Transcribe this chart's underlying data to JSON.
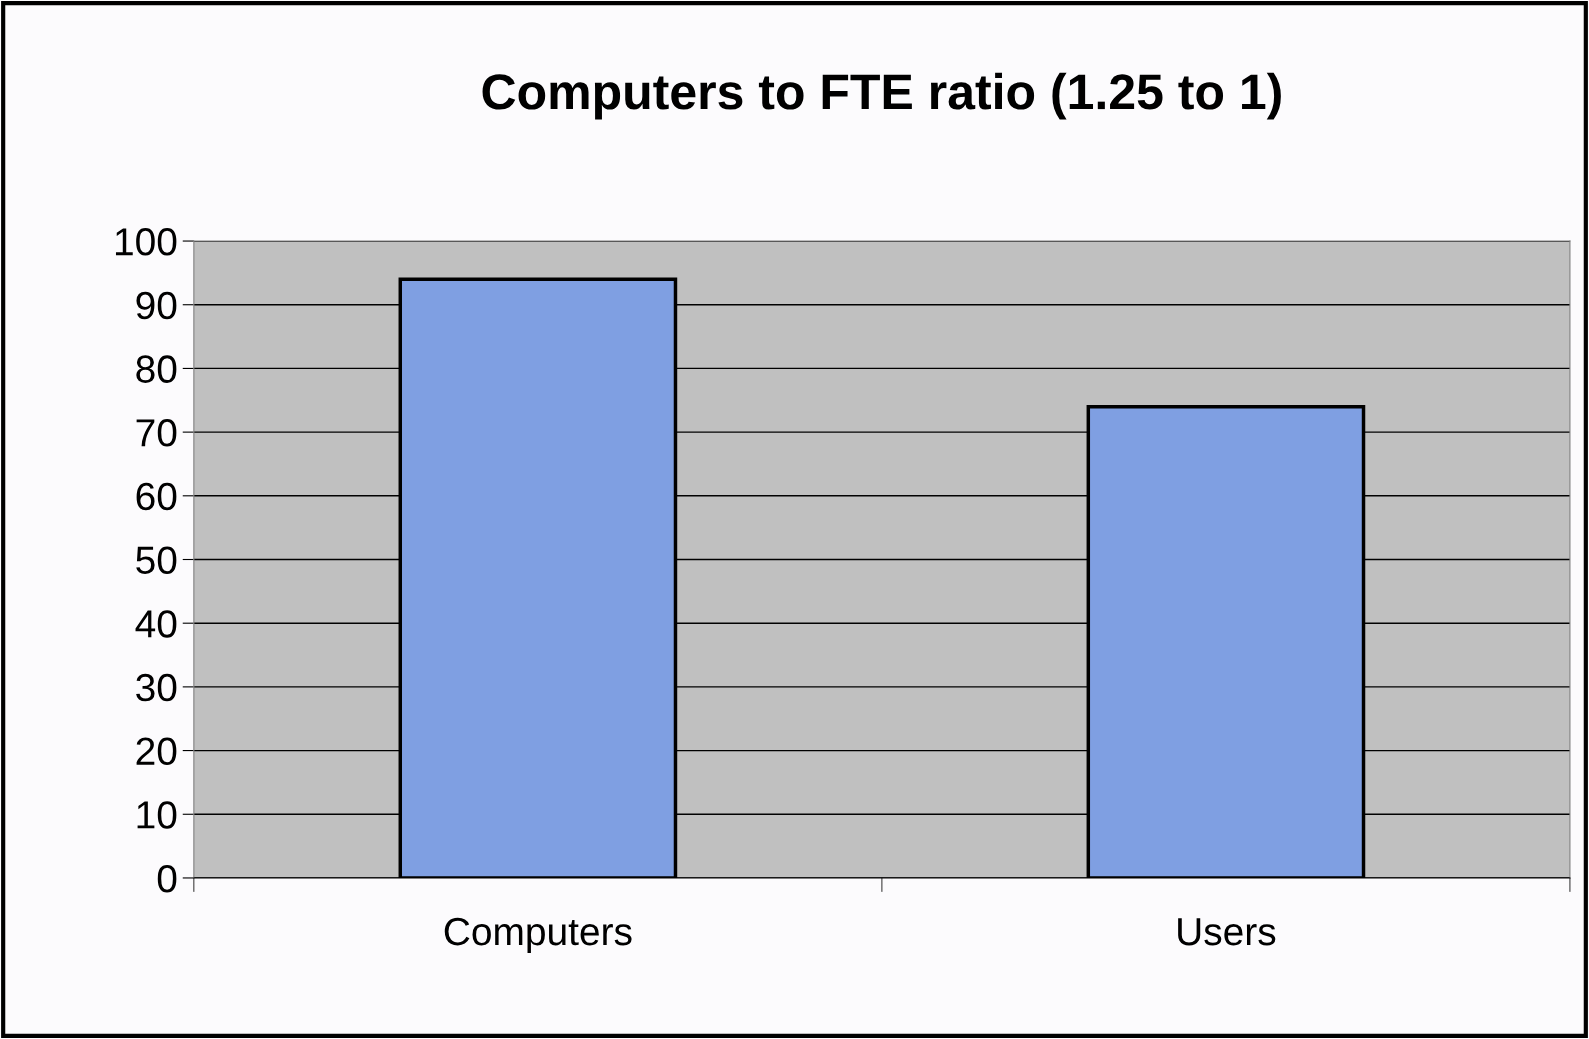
{
  "chart_data": {
    "type": "bar",
    "title": "Computers to FTE ratio (1.25 to 1)",
    "categories": [
      "Computers",
      "Users"
    ],
    "values": [
      94,
      74
    ],
    "color": "#7f9fe2",
    "ylim": [
      0,
      100
    ],
    "yticks": [
      0,
      10,
      20,
      30,
      40,
      50,
      60,
      70,
      80,
      90,
      100
    ],
    "grid": "y"
  }
}
